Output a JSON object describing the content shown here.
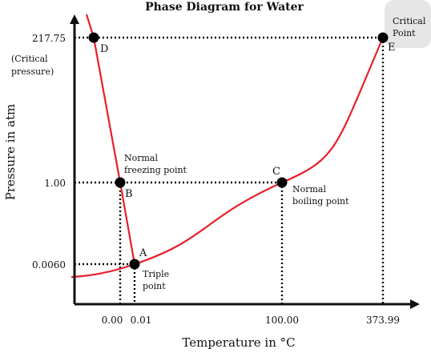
{
  "chart_data": {
    "type": "line",
    "title": "Phase Diagram for Water",
    "xlabel": "Temperature in °C",
    "ylabel": "Pressure in atm",
    "x_ticks": [
      "0.00",
      "0.01",
      "100.00",
      "373.99"
    ],
    "y_ticks": [
      "217.75",
      "1.00",
      "0.0060"
    ],
    "y_tick_note": [
      "(Critical",
      "pressure)"
    ],
    "points": [
      {
        "letter": "D",
        "x": -1.0,
        "y": 217.75
      },
      {
        "letter": "B",
        "x": 0.0,
        "y": 1.0,
        "caption": [
          "Normal",
          "freezing point"
        ]
      },
      {
        "letter": "A",
        "x": 0.01,
        "y": 0.006,
        "caption": [
          "Triple",
          "point"
        ]
      },
      {
        "letter": "C",
        "x": 100.0,
        "y": 1.0,
        "caption": [
          "Normal",
          "boiling point"
        ]
      },
      {
        "letter": "E",
        "x": 373.99,
        "y": 217.75,
        "caption": [
          "Critical",
          "Point"
        ]
      }
    ],
    "series": [
      {
        "label": "melting curve",
        "x": [
          -1.2,
          -1.0,
          0.0,
          0.01
        ],
        "y": [
          260,
          217.75,
          1.0,
          0.006
        ]
      },
      {
        "label": "vaporization curve",
        "x": [
          0.01,
          100.0,
          373.99
        ],
        "y": [
          0.006,
          1.0,
          217.75
        ]
      },
      {
        "label": "sublimation curve",
        "x": [
          -2.0,
          0.01
        ],
        "y": [
          0.0045,
          0.006
        ]
      }
    ],
    "colors": {
      "curve": "#e8202a",
      "axis": "#111111",
      "point": "#000000"
    },
    "axis_scale": "non-linear, not to scale",
    "grid": false
  }
}
